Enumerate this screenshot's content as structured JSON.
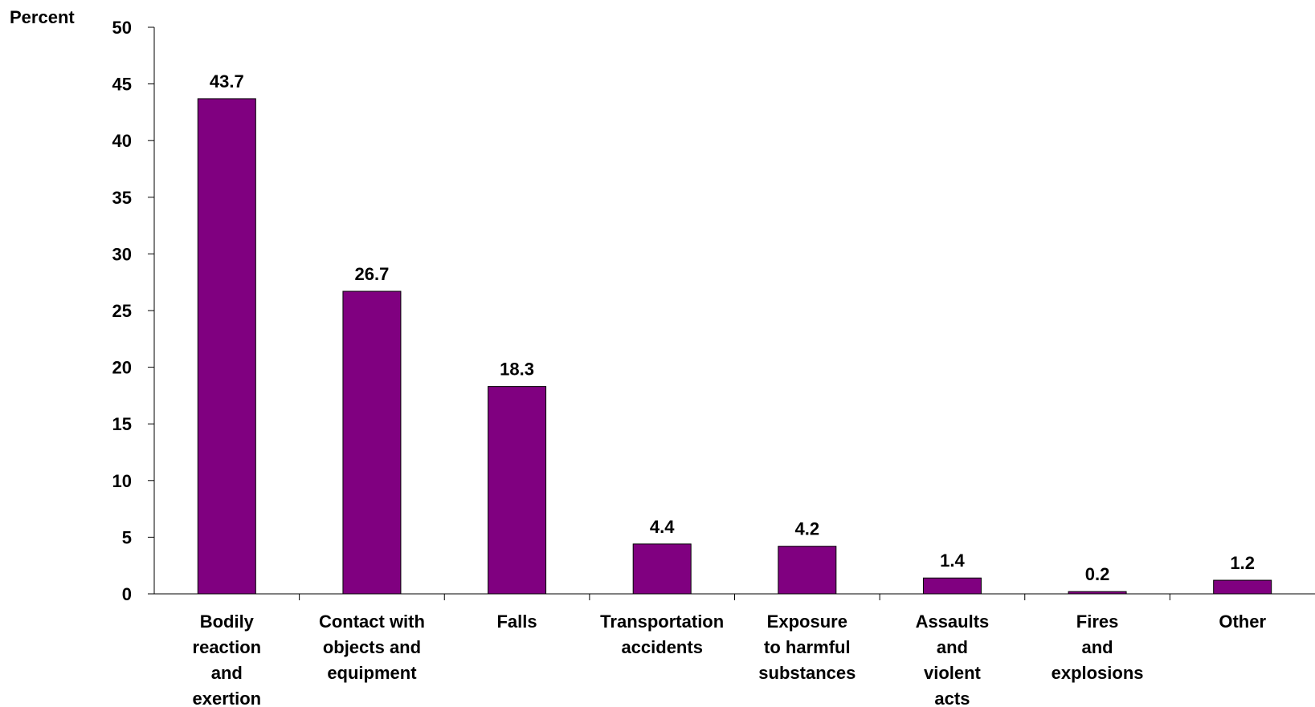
{
  "chart_data": {
    "type": "bar",
    "title": "",
    "xlabel": "",
    "ylabel": "Percent",
    "ylim": [
      0,
      50
    ],
    "yticks": [
      0,
      5,
      10,
      15,
      20,
      25,
      30,
      35,
      40,
      45,
      50
    ],
    "grid": false,
    "categories": [
      "Bodily reaction and exertion",
      "Contact with objects and equipment",
      "Falls",
      "Transportation accidents",
      "Exposure to harmful substances",
      "Assaults and violent acts",
      "Fires and explosions",
      "Other"
    ],
    "category_lines": [
      [
        "Bodily",
        "reaction",
        "and",
        "exertion"
      ],
      [
        "Contact with",
        "objects and",
        "equipment"
      ],
      [
        "Falls"
      ],
      [
        "Transportation",
        "accidents"
      ],
      [
        "Exposure",
        "to harmful",
        "substances"
      ],
      [
        "Assaults",
        "and",
        "violent",
        "acts"
      ],
      [
        "Fires",
        "and",
        "explosions"
      ],
      [
        "Other"
      ]
    ],
    "values": [
      43.7,
      26.7,
      18.3,
      4.4,
      4.2,
      1.4,
      0.2,
      1.2
    ],
    "data_labels": [
      "43.7",
      "26.7",
      "18.3",
      "4.4",
      "4.2",
      "1.4",
      "0.2",
      "1.2"
    ],
    "colors": {
      "bar": "#800080",
      "bar_outline": "#000000",
      "axis": "#000000"
    }
  }
}
